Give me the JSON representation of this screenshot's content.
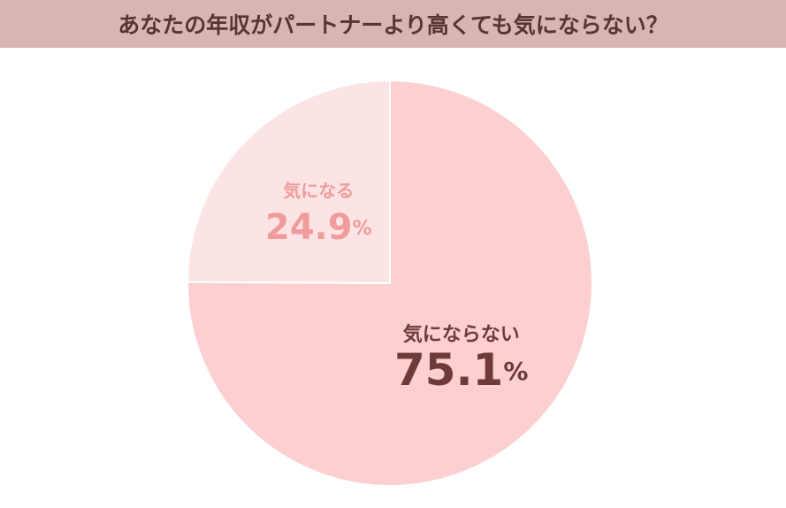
{
  "chart_data": {
    "type": "pie",
    "title": "あなたの年収がパートナーより高くても気にならない？",
    "categories": [
      "気にならない",
      "気になる"
    ],
    "values": [
      75.1,
      24.9
    ],
    "value_labels": [
      "75.1%",
      "24.9%"
    ],
    "colors": [
      "#fccfd0",
      "#fde4e4"
    ],
    "label_colors": [
      "#6e3b3b",
      "#f09c9c"
    ]
  }
}
